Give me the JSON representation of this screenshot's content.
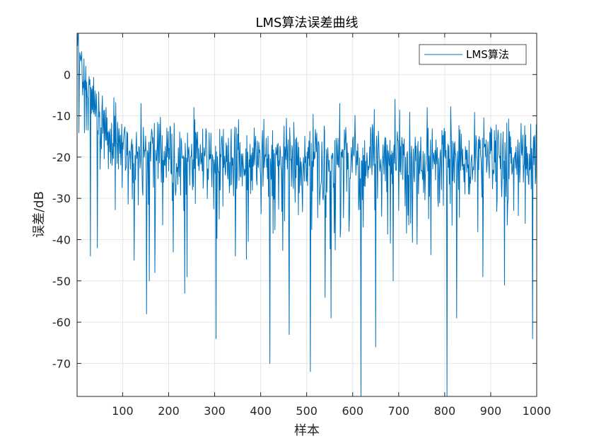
{
  "chart_data": {
    "type": "line",
    "title": "LMS算法误差曲线",
    "xlabel": "样本",
    "ylabel": "误差/dB",
    "xlim": [
      1,
      1000
    ],
    "ylim": [
      -78,
      10
    ],
    "xticks": [
      100,
      200,
      300,
      400,
      500,
      600,
      700,
      800,
      900,
      1000
    ],
    "yticks": [
      0,
      -10,
      -20,
      -30,
      -40,
      -50,
      -60,
      -70
    ],
    "grid": true,
    "legend_position": "top-right",
    "series": [
      {
        "name": "LMS算法",
        "color": "#0072BD",
        "trend": {
          "start": 8,
          "steady": -20,
          "decay_samples": 40
        },
        "x_range": [
          1,
          1000
        ],
        "sample_count": 1000,
        "notable_dips": [
          {
            "x": 30,
            "y": -44
          },
          {
            "x": 45,
            "y": -42
          },
          {
            "x": 125,
            "y": -45
          },
          {
            "x": 152,
            "y": -58
          },
          {
            "x": 158,
            "y": -50
          },
          {
            "x": 170,
            "y": -48
          },
          {
            "x": 210,
            "y": -43
          },
          {
            "x": 235,
            "y": -53
          },
          {
            "x": 240,
            "y": -49
          },
          {
            "x": 303,
            "y": -64
          },
          {
            "x": 345,
            "y": -44
          },
          {
            "x": 420,
            "y": -70
          },
          {
            "x": 462,
            "y": -63
          },
          {
            "x": 508,
            "y": -72
          },
          {
            "x": 540,
            "y": -54
          },
          {
            "x": 553,
            "y": -59
          },
          {
            "x": 618,
            "y": -78
          },
          {
            "x": 650,
            "y": -66
          },
          {
            "x": 688,
            "y": -50
          },
          {
            "x": 805,
            "y": -78
          },
          {
            "x": 826,
            "y": -59
          },
          {
            "x": 883,
            "y": -49
          },
          {
            "x": 930,
            "y": -51
          },
          {
            "x": 991,
            "y": -64
          }
        ],
        "notable_peaks": [
          {
            "x": 3,
            "y": 10
          },
          {
            "x": 10,
            "y": 4
          },
          {
            "x": 20,
            "y": 2
          },
          {
            "x": 40,
            "y": -4
          },
          {
            "x": 140,
            "y": -7
          },
          {
            "x": 255,
            "y": -8
          },
          {
            "x": 572,
            "y": -7
          },
          {
            "x": 762,
            "y": -8
          }
        ]
      }
    ]
  }
}
